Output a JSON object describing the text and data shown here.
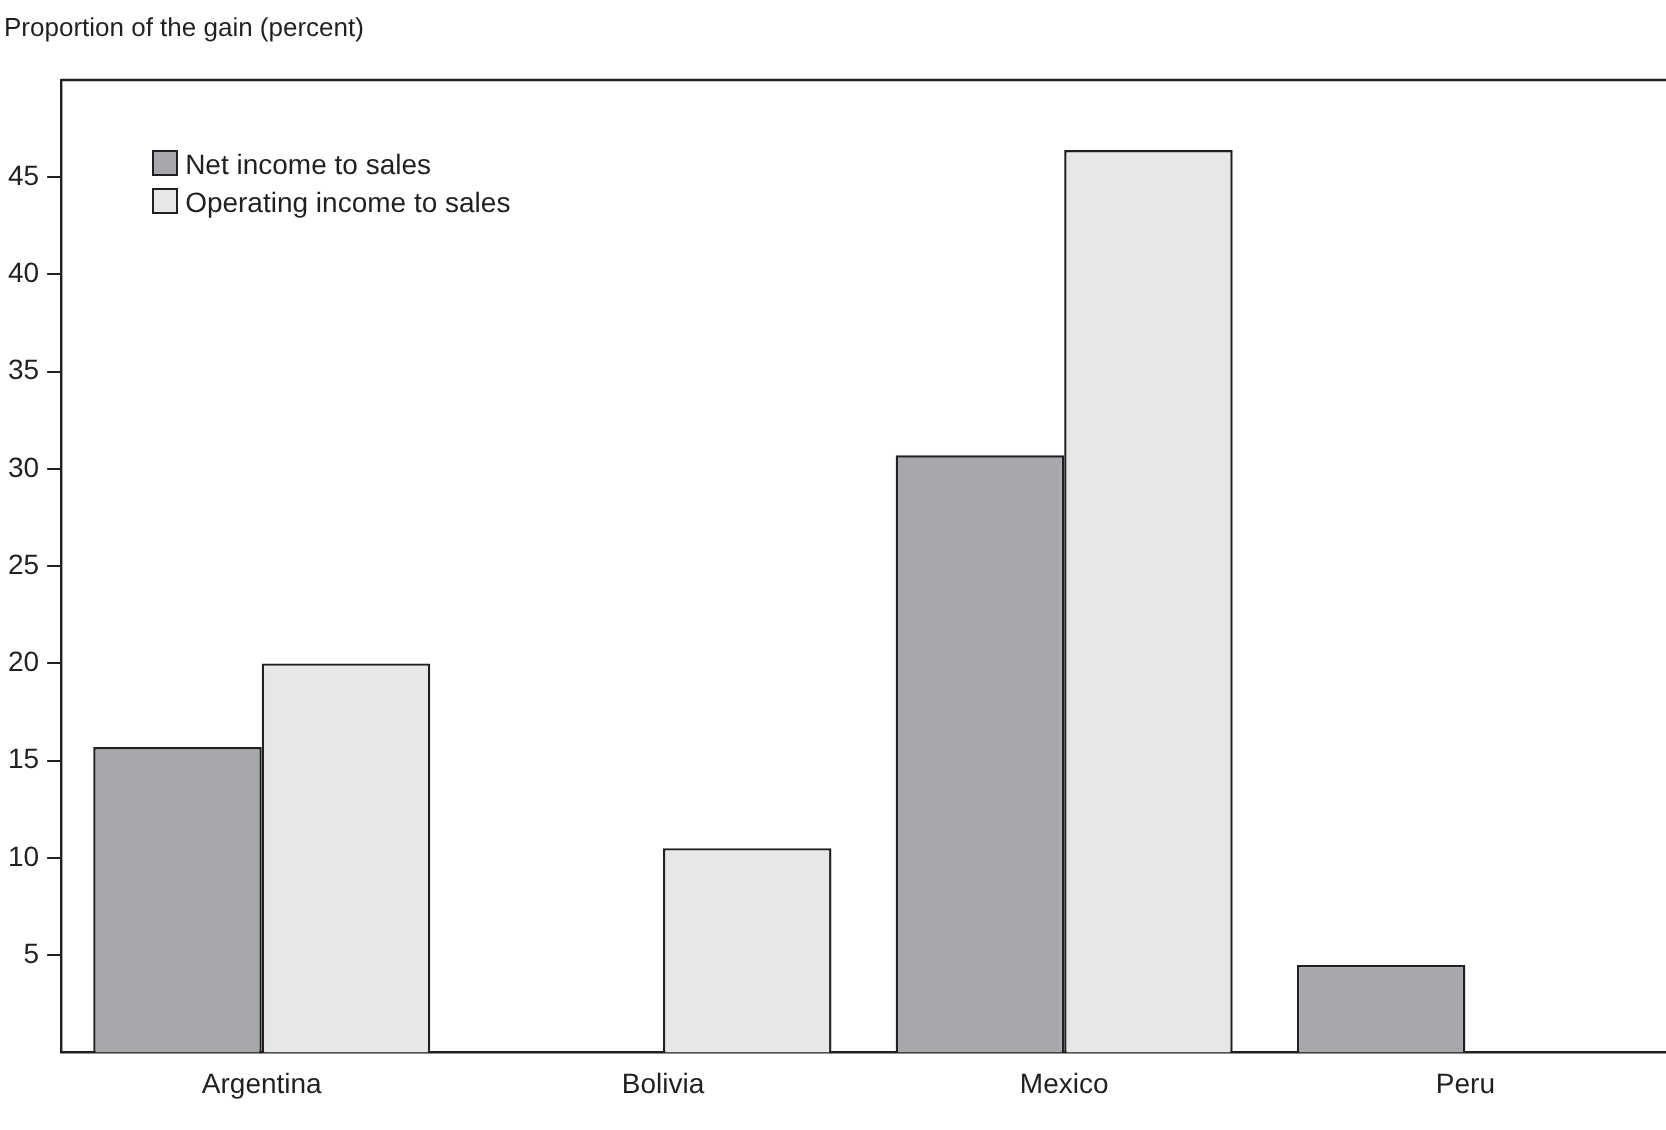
{
  "chart_data": {
    "type": "bar",
    "ylabel": "Proportion of the gain (percent)",
    "categories": [
      "Argentina",
      "Bolivia",
      "Mexico",
      "Peru"
    ],
    "series": [
      {
        "name": "Net income to sales",
        "color": "#a7a8ab",
        "values": [
          15.7,
          null,
          30.7,
          4.5
        ]
      },
      {
        "name": "Operating income to sales",
        "color": "#e6e7e8",
        "values": [
          20.0,
          10.5,
          46.4,
          null
        ]
      }
    ],
    "ylim": [
      0,
      50
    ],
    "yticks": [
      5,
      10,
      15,
      20,
      25,
      30,
      35,
      40,
      45
    ],
    "grid": false,
    "legend": "top left"
  }
}
